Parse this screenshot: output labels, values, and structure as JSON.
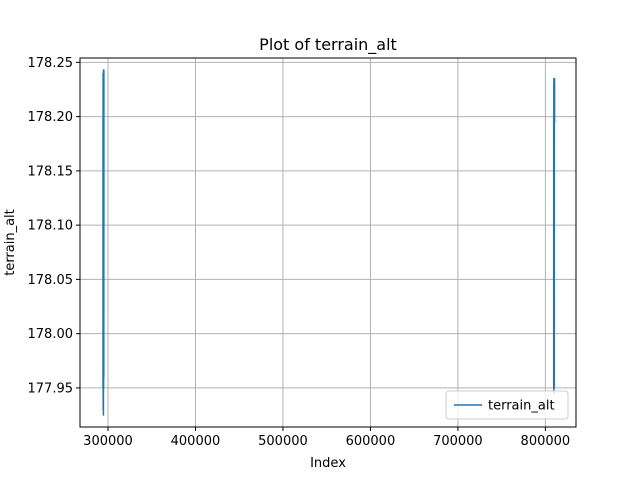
{
  "chart_data": {
    "type": "line",
    "title": "Plot of terrain_alt",
    "xlabel": "Index",
    "ylabel": "terrain_alt",
    "xlim": [
      268000,
      835000
    ],
    "ylim": [
      177.914,
      178.254
    ],
    "xticks": [
      300000,
      400000,
      500000,
      600000,
      700000,
      800000
    ],
    "xtick_labels": [
      "300000",
      "400000",
      "500000",
      "600000",
      "700000",
      "800000"
    ],
    "yticks": [
      177.95,
      178.0,
      178.05,
      178.1,
      178.15,
      178.2,
      178.25
    ],
    "ytick_labels": [
      "177.95",
      "178.00",
      "178.05",
      "178.10",
      "178.15",
      "178.20",
      "178.25"
    ],
    "grid": true,
    "legend_position": "lower-right",
    "series": [
      {
        "name": "terrain_alt",
        "color": "#1f77b4",
        "segments": [
          {
            "x": [
              294300,
              294300,
              294400,
              294400,
              294500,
              294500,
              294600,
              294600,
              294700,
              294700,
              294800,
              294800,
              294900,
              294900,
              295000,
              295000,
              295100,
              295100,
              295200,
              295200,
              295300,
              295300
            ],
            "y": [
              178.2,
              177.95,
              178.24,
              177.96,
              178.22,
              177.93,
              178.24,
              177.95,
              178.21,
              177.97,
              178.23,
              177.925,
              178.243,
              177.96,
              178.2,
              177.95,
              178.24,
              177.97,
              178.22,
              177.96,
              178.243,
              178.1
            ]
          },
          {
            "x": [
              809500,
              809500,
              809600,
              809600,
              809700,
              809700,
              809800,
              809800,
              809900,
              809900,
              810000,
              810000,
              810100,
              810100,
              810200,
              810200,
              810300,
              810300,
              810400,
              810400,
              810500,
              810500
            ],
            "y": [
              178.2,
              177.95,
              178.23,
              177.97,
              178.235,
              177.945,
              178.22,
              177.96,
              178.234,
              177.95,
              178.21,
              177.98,
              178.235,
              177.95,
              178.23,
              178.19,
              178.235,
              178.195,
              178.234,
              178.2,
              178.235,
              178.195
            ]
          }
        ]
      }
    ],
    "legend": {
      "entries": [
        "terrain_alt"
      ]
    },
    "colors": {
      "line": "#1f77b4",
      "grid": "#b0b0b0",
      "axes": "#000000",
      "legend_border": "#cccccc"
    }
  }
}
